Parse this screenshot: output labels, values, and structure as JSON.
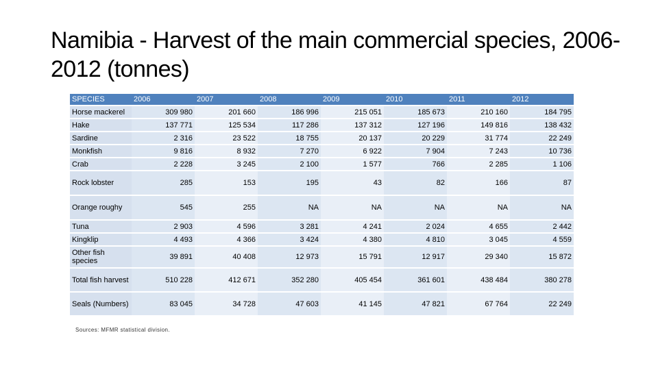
{
  "title": "Namibia - Harvest of the main commercial species, 2006-2012 (tonnes)",
  "table": {
    "headers": [
      "SPECIES",
      "2006",
      "2007",
      "2008",
      "2009",
      "2010",
      "2011",
      "2012"
    ],
    "rows": [
      {
        "species": "Horse mackerel",
        "values": [
          "309 980",
          "201 660",
          "186 996",
          "215 051",
          "185 673",
          "210 160",
          "184 795"
        ]
      },
      {
        "species": "Hake",
        "values": [
          "137 771",
          "125 534",
          "117 286",
          "137 312",
          "127 196",
          "149 816",
          "138 432"
        ]
      },
      {
        "species": "Sardine",
        "values": [
          "2 316",
          "23 522",
          "18 755",
          "20 137",
          "20 229",
          "31 774",
          "22 249"
        ]
      },
      {
        "species": "Monkfish",
        "values": [
          "9 816",
          "8 932",
          "7 270",
          "6 922",
          "7 904",
          "7 243",
          "10 736"
        ]
      },
      {
        "species": "Crab",
        "values": [
          "2 228",
          "3 245",
          "2 100",
          "1 577",
          "766",
          "2 285",
          "1 106"
        ]
      },
      {
        "species": "Rock lobster",
        "values": [
          "285",
          "153",
          "195",
          "43",
          "82",
          "166",
          "87"
        ]
      },
      {
        "species": "Orange roughy",
        "values": [
          "545",
          "255",
          "NA",
          "NA",
          "NA",
          "NA",
          "NA"
        ]
      },
      {
        "species": "Tuna",
        "values": [
          "2 903",
          "4 596",
          "3 281",
          "4 241",
          "2 024",
          "4 655",
          "2 442"
        ]
      },
      {
        "species": "Kingklip",
        "values": [
          "4 493",
          "4 366",
          "3 424",
          "4 380",
          "4 810",
          "3 045",
          "4 559"
        ]
      },
      {
        "species": "Other fish species",
        "values": [
          "39 891",
          "40 408",
          "12 973",
          "15 791",
          "12 917",
          "29 340",
          "15 872"
        ]
      },
      {
        "species": "Total fish harvest",
        "values": [
          "510 228",
          "412 671",
          "352 280",
          "405 454",
          "361 601",
          "438 484",
          "380 278"
        ]
      },
      {
        "species": "Seals (Numbers)",
        "values": [
          "83 045",
          "34 728",
          "47 603",
          "41 145",
          "47 821",
          "67 764",
          "22 249"
        ]
      }
    ]
  },
  "source": "Sources: MFMR statistical division.",
  "colors": {
    "header": "#4f81bd",
    "row": "#dce6f2"
  }
}
